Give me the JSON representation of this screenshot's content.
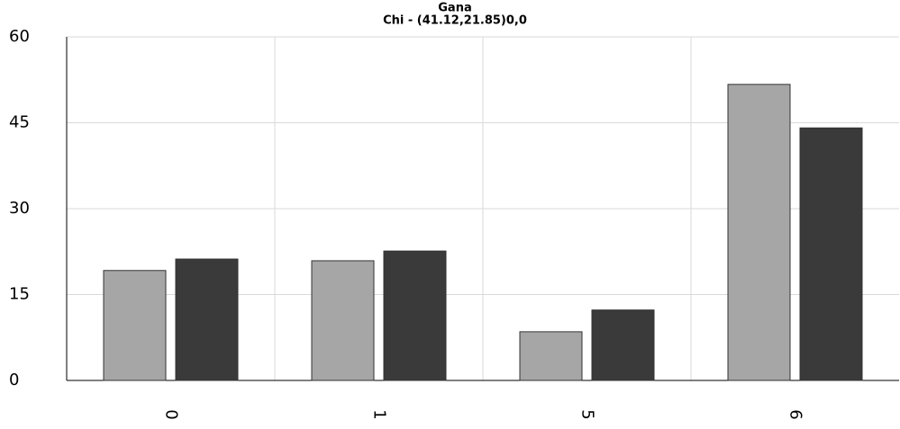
{
  "chart_data": {
    "type": "bar",
    "title": "Gana",
    "subtitle": "Chi - (41.12,21.85)0,0",
    "categories": [
      "0",
      "1",
      "5",
      "6"
    ],
    "series": [
      {
        "color": "#a6a6a6",
        "values": [
          19.2,
          20.9,
          8.5,
          51.7
        ]
      },
      {
        "color": "#3a3a3a",
        "values": [
          21.2,
          22.6,
          12.3,
          44.1
        ]
      }
    ],
    "ylim": [
      0,
      60
    ],
    "yticks": [
      0,
      15,
      30,
      45,
      60
    ],
    "grid": true
  }
}
